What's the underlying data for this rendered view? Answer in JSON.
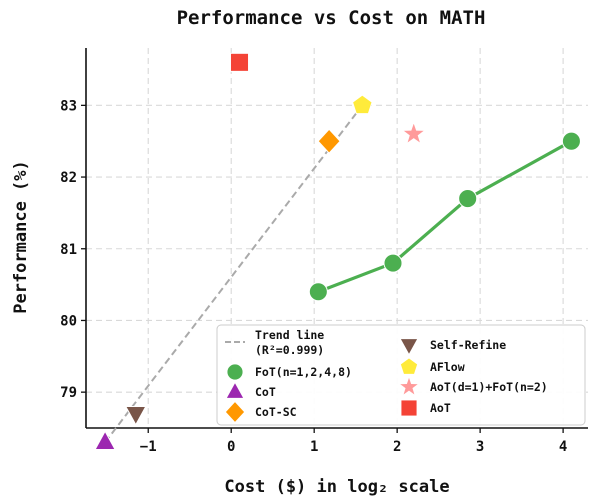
{
  "chart_data": {
    "type": "scatter",
    "title": "Performance vs Cost on MATH",
    "xlabel": "Cost ($) in log₂ scale",
    "ylabel": "Performance (%)",
    "xlim": [
      -1.75,
      4.3
    ],
    "ylim": [
      78.5,
      83.8
    ],
    "x_ticks": [
      -1,
      0,
      1,
      2,
      3,
      4
    ],
    "y_ticks": [
      79,
      80,
      81,
      82,
      83
    ],
    "grid": true,
    "legend_position": "lower-right",
    "series": [
      {
        "name": "FoT(n=1,2,4,8)",
        "marker": "circle",
        "color": "#4caf50",
        "connected": true,
        "x": [
          1.05,
          1.95,
          2.85,
          4.1
        ],
        "y": [
          80.4,
          80.8,
          81.7,
          82.5
        ]
      },
      {
        "name": "CoT",
        "marker": "triangle-up",
        "color": "#9c27b0",
        "x": [
          -1.52
        ],
        "y": [
          78.3
        ]
      },
      {
        "name": "CoT-SC",
        "marker": "diamond",
        "color": "#ff9800",
        "x": [
          1.18
        ],
        "y": [
          82.5
        ]
      },
      {
        "name": "Self-Refine",
        "marker": "triangle-down",
        "color": "#795548",
        "x": [
          -1.15
        ],
        "y": [
          78.7
        ]
      },
      {
        "name": "AFlow",
        "marker": "pentagon",
        "color": "#ffeb3b",
        "x": [
          1.58
        ],
        "y": [
          83.0
        ]
      },
      {
        "name": "AoT(d=1)+FoT(n=2)",
        "marker": "star",
        "color": "#ff9a9a",
        "x": [
          2.2
        ],
        "y": [
          82.6
        ]
      },
      {
        "name": "AoT",
        "marker": "square",
        "color": "#f44336",
        "x": [
          0.1
        ],
        "y": [
          83.6
        ]
      }
    ],
    "trend_line": {
      "label_line1": "Trend line",
      "label_line2": "(R²=0.999)",
      "color": "#aaaaaa",
      "style": "dashed",
      "x": [
        -1.52,
        1.58
      ],
      "y": [
        78.3,
        83.0
      ]
    }
  }
}
